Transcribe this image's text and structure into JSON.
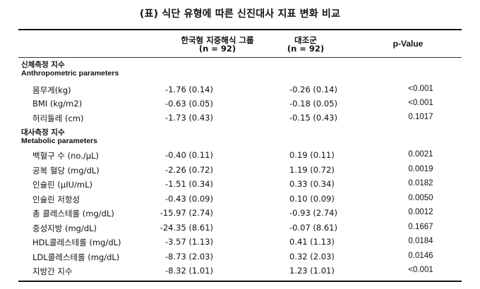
{
  "title": "(표) 식단 유형에 따른 신진대사 지표 변화 비교",
  "header": {
    "group1_line1": "한국형 지중해식 그룹",
    "group1_line2": "(n = 92)",
    "group2_line1": "대조군",
    "group2_line2": "(n = 92)",
    "pvalue": "p-Value"
  },
  "sections": [
    {
      "ko": "신체측정 지수",
      "en": "Anthropometric parameters"
    },
    {
      "ko": "대사측정 지수",
      "en": "Metabolic parameters"
    }
  ],
  "rows_anthro": [
    {
      "label": "몸무게(kg)",
      "g1": "-1.76 (0.14)",
      "g2": "-0.26 (0.14)",
      "p": "<0.001"
    },
    {
      "label": "BMI (kg/m2)",
      "g1": "-0.63 (0.05)",
      "g2": "-0.18 (0.05)",
      "p": "<0.001"
    },
    {
      "label": "허리둘레 (cm)",
      "g1": "-1.73 (0.43)",
      "g2": "-0.15 (0.43)",
      "p": "0.1017"
    }
  ],
  "rows_metab": [
    {
      "label": "백혈구 수 (no./µL)",
      "g1": "-0.40 (0.11)",
      "g2": "0.19 (0.11)",
      "p": "0.0021"
    },
    {
      "label": "공복 혈당 (mg/dL)",
      "g1": "-2.26 (0.72)",
      "g2": "1.19 (0.72)",
      "p": "0.0019"
    },
    {
      "label": "인슐린 (µIU/mL)",
      "g1": "-1.51 (0.34)",
      "g2": "0.33 (0.34)",
      "p": "0.0182"
    },
    {
      "label": "인슐린 저항성",
      "g1": "-0.43 (0.09)",
      "g2": "0.10 (0.09)",
      "p": "0.0050"
    },
    {
      "label": "총 콜레스테롤 (mg/dL)",
      "g1": "-15.97 (2.74)",
      "g2": "-0.93 (2.74)",
      "p": "0.0012"
    },
    {
      "label": "중성지방 (mg/dL)",
      "g1": "-24.35 (8.61)",
      "g2": "-0.07 (8.61)",
      "p": "0.1667"
    },
    {
      "label": "HDL콜레스테롤 (mg/dL)",
      "g1": "-3.57 (1.13)",
      "g2": "0.41 (1.13)",
      "p": "0.0184"
    },
    {
      "label": "LDL콜레스테롤 (mg/dL)",
      "g1": "-8.73 (2.03)",
      "g2": "0.32 (2.03)",
      "p": "0.0146"
    },
    {
      "label": "지방간 지수",
      "g1": "-8.32 (1.01)",
      "g2": "1.23 (1.01)",
      "p": "<0.001"
    }
  ]
}
